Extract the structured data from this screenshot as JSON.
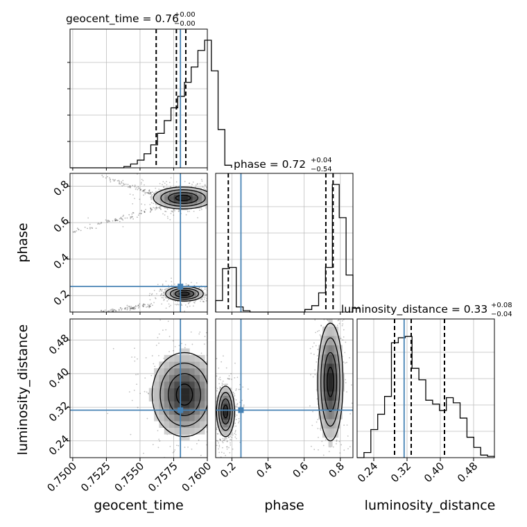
{
  "chart_data": {
    "type": "corner",
    "parameters": [
      {
        "key": "geocent_time",
        "label": "geocent_time",
        "range": [
          0.7498,
          0.76
        ],
        "ticks": [
          "0.7500",
          "0.7525",
          "0.7550",
          "0.7575",
          "0.7600"
        ],
        "tick_values": [
          0.75,
          0.7525,
          0.755,
          0.7575,
          0.76
        ],
        "truth": 0.758,
        "median": 0.76,
        "plus": "+0.00",
        "minus": "−0.00",
        "quantiles": [
          0.7562,
          0.7577,
          0.7584
        ]
      },
      {
        "key": "phase",
        "label": "phase",
        "range": [
          0.11,
          0.87
        ],
        "ticks": [
          "0.2",
          "0.4",
          "0.6",
          "0.8"
        ],
        "tick_values": [
          0.2,
          0.4,
          0.6,
          0.8
        ],
        "truth": 0.25,
        "median": 0.72,
        "plus": "+0.04",
        "minus": "−0.54",
        "quantiles": [
          0.18,
          0.72,
          0.76
        ]
      },
      {
        "key": "luminosity_distance",
        "label": "luminosity_distance",
        "range": [
          0.2,
          0.53
        ],
        "ticks": [
          "0.24",
          "0.32",
          "0.40",
          "0.48"
        ],
        "tick_values": [
          0.24,
          0.32,
          0.4,
          0.48
        ],
        "truth": 0.313,
        "median": 0.33,
        "plus": "+0.08",
        "minus": "−0.04",
        "quantiles": [
          0.29,
          0.33,
          0.41
        ]
      }
    ],
    "histograms": [
      {
        "param": "geocent_time",
        "bin_start": 0.7498,
        "bin_width": 0.0005,
        "values": [
          0,
          0,
          0,
          0,
          0,
          0,
          0,
          0,
          0.01,
          0.03,
          0.06,
          0.11,
          0.18,
          0.27,
          0.37,
          0.47,
          0.56,
          0.67,
          0.79,
          0.92,
          1.0,
          0.76,
          0.3,
          0.02
        ]
      },
      {
        "param": "phase",
        "bin_start": 0.11,
        "bin_width": 0.038,
        "values": [
          0.09,
          0.34,
          0.35,
          0.04,
          0.01,
          0,
          0,
          0,
          0,
          0,
          0,
          0,
          0,
          0.02,
          0.05,
          0.15,
          0.35,
          1.0,
          0.74,
          0.29,
          0.03
        ]
      },
      {
        "param": "luminosity_distance",
        "bin_start": 0.2,
        "bin_width": 0.0165,
        "values": [
          0,
          0.04,
          0.22,
          0.34,
          0.48,
          0.9,
          0.94,
          0.95,
          0.7,
          0.61,
          0.45,
          0.42,
          0.37,
          0.47,
          0.43,
          0.31,
          0.16,
          0.08,
          0.02,
          0.01
        ]
      }
    ],
    "pairs": [
      {
        "x": "geocent_time",
        "y": "phase",
        "modes": [
          {
            "x": 0.7582,
            "y": 0.735,
            "sx": 0.0011,
            "sy": 0.03,
            "label": "upper"
          },
          {
            "x": 0.7583,
            "y": 0.21,
            "sx": 0.0007,
            "sy": 0.02,
            "label": "lower"
          }
        ],
        "tails": [
          [
            0.75,
            0.55,
            0.757,
            0.69
          ],
          [
            0.7523,
            0.85,
            0.7575,
            0.72
          ],
          [
            0.752,
            0.11,
            0.756,
            0.15
          ]
        ]
      },
      {
        "x": "geocent_time",
        "y": "luminosity_distance",
        "modes": [
          {
            "x": 0.7583,
            "y": 0.35,
            "sx": 0.0012,
            "sy": 0.05,
            "label": "main"
          }
        ]
      },
      {
        "x": "phase",
        "y": "luminosity_distance",
        "modes": [
          {
            "x": 0.165,
            "y": 0.31,
            "sx": 0.025,
            "sy": 0.03,
            "label": "left"
          },
          {
            "x": 0.745,
            "y": 0.38,
            "sx": 0.035,
            "sy": 0.07,
            "label": "right"
          }
        ]
      }
    ],
    "truth_color": "#4682b4",
    "line_color": "#000000",
    "grid": true
  }
}
